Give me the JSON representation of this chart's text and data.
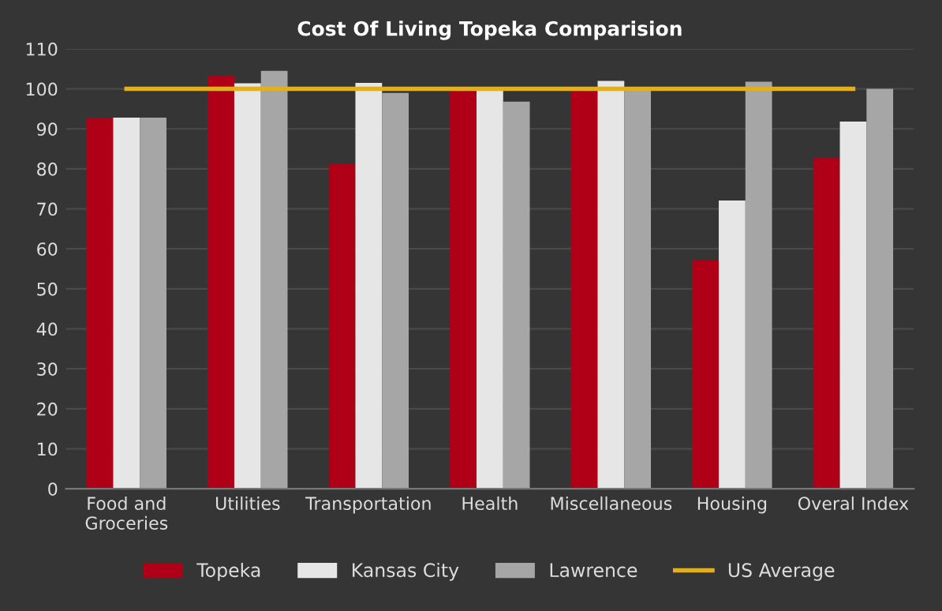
{
  "chart_data": {
    "type": "bar",
    "title": "Cost Of Living Topeka Comparision",
    "categories": [
      "Food and\nGroceries",
      "Utilities",
      "Transportation",
      "Health",
      "Miscellaneous",
      "Housing",
      "Overal Index"
    ],
    "series": [
      {
        "name": "Topeka",
        "color": "#b00018",
        "values": [
          92.8,
          103.2,
          81.2,
          100,
          99.5,
          57.1,
          82.7
        ]
      },
      {
        "name": "Kansas City",
        "color": "#e6e6e6",
        "values": [
          92.8,
          101.4,
          101.5,
          99.5,
          102,
          72.1,
          91.8
        ]
      },
      {
        "name": "Lawrence",
        "color": "#a6a6a6",
        "values": [
          92.8,
          104.5,
          99,
          96.8,
          99.8,
          101.8,
          100
        ]
      },
      {
        "name": "US Average",
        "type": "line",
        "color": "#e0b020",
        "values": [
          100,
          100,
          100,
          100,
          100,
          100,
          100
        ]
      }
    ],
    "ylim": [
      0,
      110
    ],
    "yticks": [
      0,
      10,
      20,
      30,
      40,
      50,
      60,
      70,
      80,
      90,
      100,
      110
    ],
    "grid": "y",
    "legend": "bottom"
  }
}
